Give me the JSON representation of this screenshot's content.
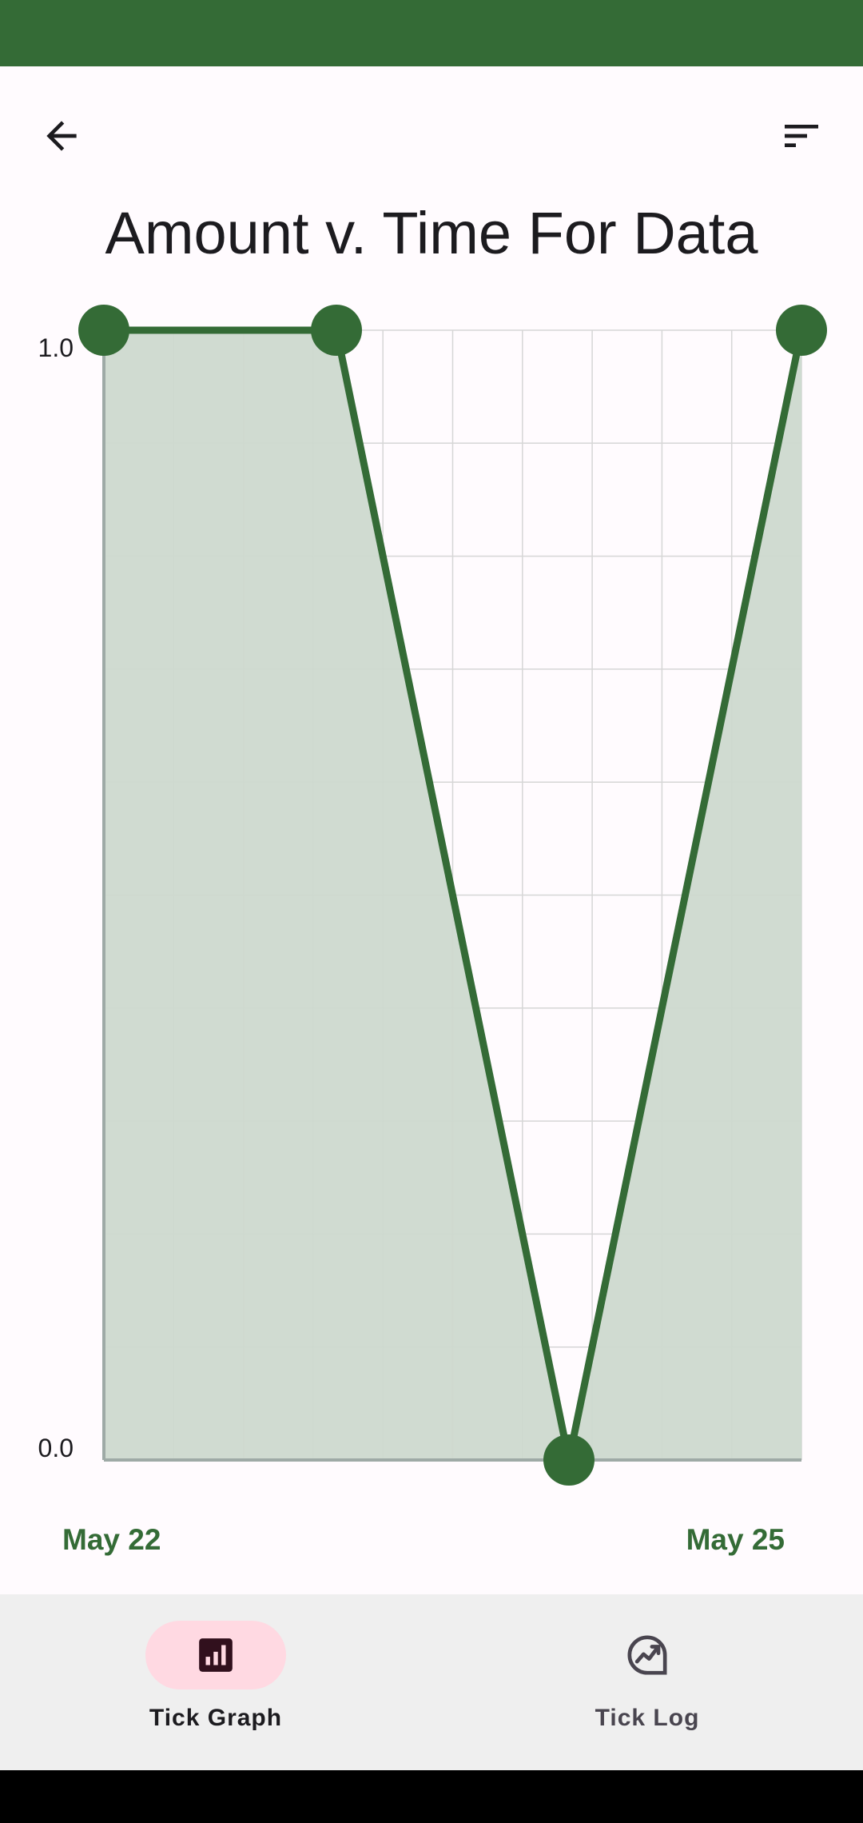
{
  "colors": {
    "status_bar": "#346b36",
    "series_line": "#346b36",
    "series_fill": "#cdd9cf",
    "axis": "#9eaaa6",
    "grid": "#d6d6d6",
    "date_label": "#346b36",
    "nav_active_pill": "#ffd9e2",
    "nav_background": "#efefef"
  },
  "toolbar": {
    "back_icon": "arrow-left-icon",
    "sort_icon": "sort-lines-icon"
  },
  "chart_data": {
    "type": "area",
    "title": "Amount v. Time For Data",
    "x": [
      0,
      1,
      2,
      3
    ],
    "values": [
      1.0,
      1.0,
      0.0,
      1.0
    ],
    "xlim": [
      0,
      3
    ],
    "ylim": [
      0.0,
      1.0
    ],
    "y_tick_labels": [
      "0.0",
      "1.0"
    ],
    "x_tick_labels": [
      "May 22",
      "May 25"
    ],
    "grid": true,
    "markers": true
  },
  "nav": {
    "items": [
      {
        "label": "Tick Graph",
        "icon": "bar-chart-icon",
        "active": true
      },
      {
        "label": "Tick Log",
        "icon": "trending-chart-icon",
        "active": false
      }
    ]
  }
}
